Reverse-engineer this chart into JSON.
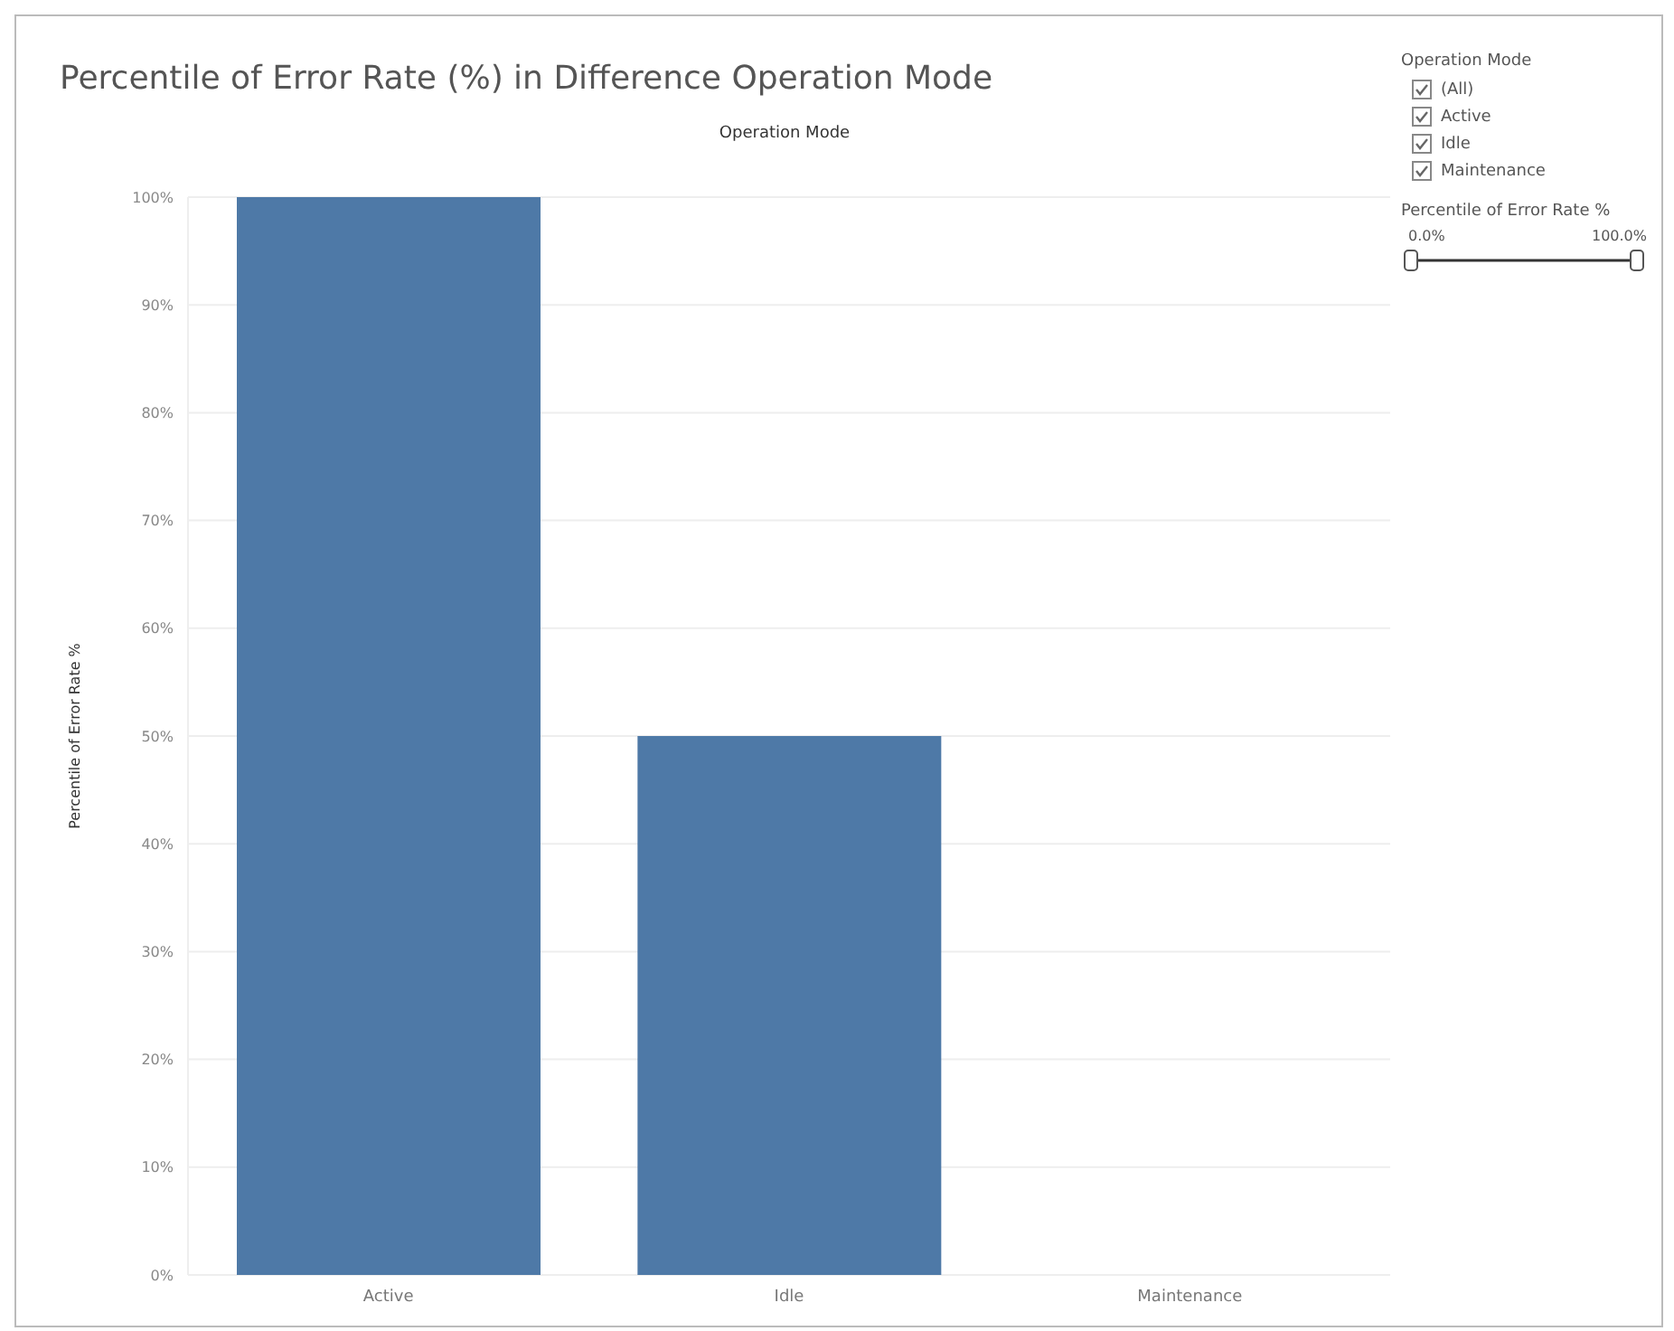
{
  "chart_data": {
    "type": "bar",
    "title": "Percentile of Error Rate (%) in Difference Operation Mode",
    "xlabel": "Operation Mode",
    "ylabel": "Percentile of Error Rate %",
    "categories": [
      "Active",
      "Idle",
      "Maintenance"
    ],
    "values": [
      100,
      50,
      0
    ],
    "color": "#4e79a7",
    "ylim": [
      0,
      100
    ],
    "yticks": [
      {
        "value": 0,
        "label": "0%"
      },
      {
        "value": 10,
        "label": "10%"
      },
      {
        "value": 20,
        "label": "20%"
      },
      {
        "value": 30,
        "label": "30%"
      },
      {
        "value": 40,
        "label": "40%"
      },
      {
        "value": 50,
        "label": "50%"
      },
      {
        "value": 60,
        "label": "60%"
      },
      {
        "value": 70,
        "label": "70%"
      },
      {
        "value": 80,
        "label": "80%"
      },
      {
        "value": 90,
        "label": "90%"
      },
      {
        "value": 100,
        "label": "100%"
      }
    ],
    "grid": "y",
    "annotations": [
      "Operation Mode",
      "(All)",
      "Active",
      "Idle",
      "Maintenance",
      "Percentile of Error Rate %",
      "0.0%",
      "100.0%"
    ]
  }
}
